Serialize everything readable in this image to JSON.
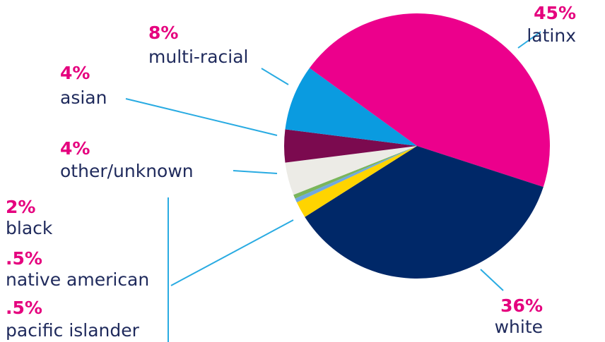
{
  "chart_data": {
    "type": "pie",
    "categories": [
      "latinx",
      "white",
      "black",
      "native american",
      "pacific islander",
      "other/unknown",
      "asian",
      "multi-racial"
    ],
    "values": [
      45,
      36,
      2,
      0.5,
      0.5,
      4,
      4,
      8
    ],
    "value_labels": [
      "45%",
      "36%",
      "2%",
      ".5%",
      ".5%",
      "4%",
      "4%",
      "8%"
    ],
    "colors": [
      "#ec008c",
      "#002868",
      "#ffd400",
      "#6fa8e0",
      "#7ab55c",
      "#ecebe6",
      "#7b0a4f",
      "#0a9be0"
    ]
  }
}
